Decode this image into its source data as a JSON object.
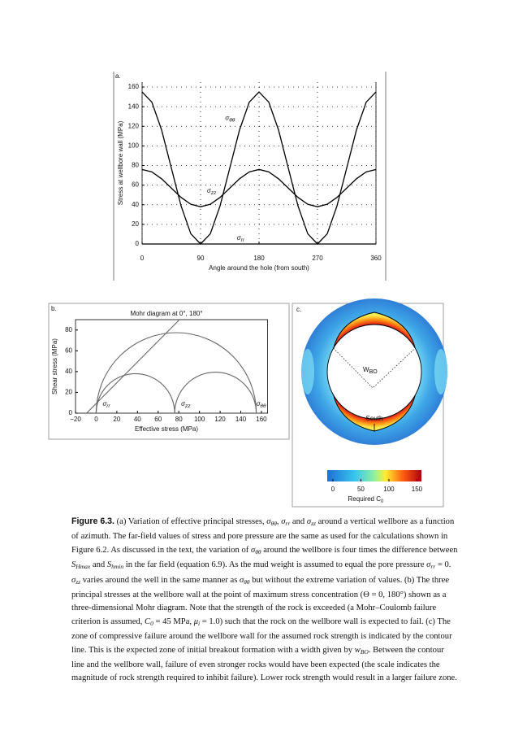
{
  "chart_data": [
    {
      "type": "line",
      "panel": "a.",
      "xlabel": "Angle around the hole (from south)",
      "ylabel": "Stress at wellbore wall (MPa)",
      "x": [
        0,
        15,
        30,
        45,
        60,
        75,
        90,
        105,
        120,
        135,
        150,
        165,
        180,
        195,
        210,
        225,
        240,
        255,
        270,
        285,
        300,
        315,
        330,
        345,
        360
      ],
      "series": [
        {
          "name": "σθθ",
          "color": "#000000",
          "values": [
            155,
            144.6,
            116.3,
            77.5,
            38.8,
            10.4,
            0,
            10.4,
            38.8,
            77.5,
            116.3,
            144.6,
            155,
            144.6,
            116.3,
            77.5,
            38.8,
            10.4,
            0,
            10.4,
            38.8,
            77.5,
            116.3,
            144.6,
            155
          ]
        },
        {
          "name": "σzz",
          "color": "#000000",
          "values": [
            76,
            73.5,
            66.5,
            57,
            47.5,
            40.5,
            38,
            40.5,
            47.5,
            57,
            66.5,
            73.5,
            76,
            73.5,
            66.5,
            57,
            47.5,
            40.5,
            38,
            40.5,
            47.5,
            57,
            66.5,
            73.5,
            76
          ]
        },
        {
          "name": "σrr",
          "color": "#000000",
          "values": [
            0,
            0,
            0,
            0,
            0,
            0,
            0,
            0,
            0,
            0,
            0,
            0,
            0,
            0,
            0,
            0,
            0,
            0,
            0,
            0,
            0,
            0,
            0,
            0,
            0
          ]
        }
      ],
      "xlim": [
        0,
        360
      ],
      "xticks": [
        0,
        90,
        180,
        270,
        360
      ],
      "ylim": [
        0,
        165
      ],
      "yticks": [
        0,
        20,
        40,
        60,
        80,
        100,
        120,
        140,
        160
      ],
      "grid": true
    },
    {
      "type": "mohr",
      "panel": "b.",
      "title": "Mohr diagram at 0°, 180°",
      "xlabel": "Effective stress (MPa)",
      "ylabel": "Shear stress (MPa)",
      "principal_stresses": {
        "names": [
          "σrr",
          "σzz",
          "σθθ"
        ],
        "values": [
          0,
          76,
          155
        ]
      },
      "failure_line": {
        "x": [
          -9.3,
          80
        ],
        "y": [
          0,
          89.3
        ]
      },
      "color": "#666666",
      "xlim": [
        -20,
        166
      ],
      "xticks": [
        {
          "value": -20,
          "label": "−20"
        },
        0,
        20,
        40,
        60,
        80,
        100,
        120,
        140,
        160
      ],
      "ylim": [
        0,
        90
      ],
      "yticks": [
        0,
        20,
        40,
        60,
        80
      ]
    },
    {
      "type": "colormap",
      "panel": "c.",
      "width_label": "W",
      "width_label_sub": "BO",
      "south_label": "South",
      "colorbar": {
        "label": "Required C",
        "label_sub": "0",
        "clim": [
          -10,
          158
        ],
        "ticks": [
          0,
          50,
          100,
          150
        ]
      }
    }
  ],
  "caption": {
    "runs": [
      [
        "Figure 6.3.",
        "b"
      ],
      [
        "  (a) Variation of effective principal stresses, "
      ],
      [
        "σ",
        "i"
      ],
      [
        "θθ",
        "sub"
      ],
      [
        ", "
      ],
      [
        "σ",
        "i"
      ],
      [
        "rr",
        "sub"
      ],
      [
        " and "
      ],
      [
        "σ",
        "i"
      ],
      [
        "zz",
        "sub"
      ],
      [
        " around a vertical wellbore as a function of azimuth. The far-field values of stress and pore pressure are the same as used for the calculations shown in Figure 6.2. As discussed in the text, the variation of "
      ],
      [
        "σ",
        "i"
      ],
      [
        "θθ",
        "sub"
      ],
      [
        " around the wellbore is four times the difference between "
      ],
      [
        "S",
        "i"
      ],
      [
        "Hmax",
        "sub"
      ],
      [
        " and "
      ],
      [
        "S",
        "i"
      ],
      [
        "hmin",
        "sub"
      ],
      [
        " in the far field (equation 6.9). As the mud weight is assumed to equal the pore pressure "
      ],
      [
        "σ",
        "i"
      ],
      [
        "rr",
        "sub"
      ],
      [
        " = 0. "
      ],
      [
        "σ",
        "i"
      ],
      [
        "zz",
        "sub"
      ],
      [
        " varies around the well in the same manner as "
      ],
      [
        "σ",
        "i"
      ],
      [
        "θθ",
        "sub"
      ],
      [
        " but without the extreme variation of values. (b) The three principal stresses at the wellbore wall at the point of maximum stress concentration (Θ = 0, 180°) shown as a three-dimensional Mohr diagram. Note that the strength of the rock is exceeded (a Mohr–Coulomb failure criterion is assumed, "
      ],
      [
        "C",
        "i"
      ],
      [
        "0",
        "sub"
      ],
      [
        " = 45 MPa, "
      ],
      [
        "μ",
        "i"
      ],
      [
        "i",
        "sub"
      ],
      [
        " = 1.0) such that the rock on the wellbore wall is expected to fail. (c) The zone of compressive failure around the wellbore wall for the assumed rock strength is indicated by the contour line. This is the expected zone of initial breakout formation with a width given by "
      ],
      [
        "w",
        "i"
      ],
      [
        "BO",
        "sub"
      ],
      [
        ". Between the contour line and the wellbore wall, failure of even stronger rocks would have been expected (the scale indicates the magnitude of rock strength required to inhibit failure). Lower rock strength would result in a larger failure zone."
      ]
    ]
  }
}
